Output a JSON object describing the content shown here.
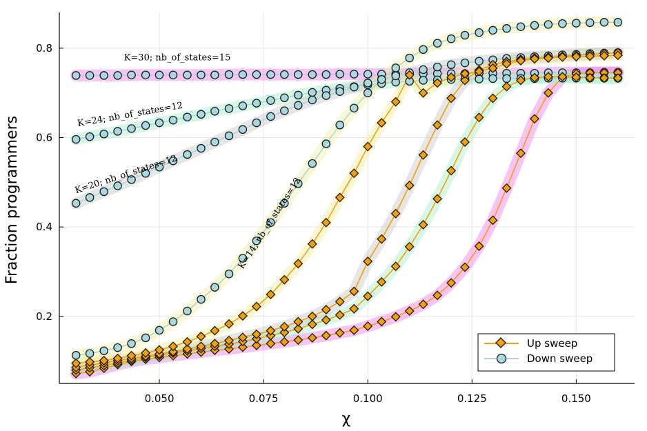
{
  "chart_data": {
    "type": "line",
    "title": "",
    "xlabel": "χ",
    "ylabel": "Fraction programmers",
    "xlim": [
      0.026,
      0.164
    ],
    "ylim": [
      0.05,
      0.88
    ],
    "xticks": [
      0.05,
      0.075,
      0.1,
      0.125,
      0.15
    ],
    "xtick_labels": [
      "0.050",
      "0.075",
      "0.100",
      "0.125",
      "0.150"
    ],
    "yticks": [
      0.2,
      0.4,
      0.6,
      0.8
    ],
    "ytick_labels": [
      "0.2",
      "0.4",
      "0.6",
      "0.8"
    ],
    "grid": true,
    "legend_position": "bottom-right",
    "legend": [
      {
        "label": "Up sweep",
        "color": "#f5a000",
        "marker": "diamond"
      },
      {
        "label": "Down sweep",
        "color": "#a8d8e0",
        "marker": "circle"
      }
    ],
    "x": [
      0.03,
      0.0333,
      0.0367,
      0.04,
      0.0433,
      0.0467,
      0.05,
      0.0533,
      0.0567,
      0.06,
      0.0633,
      0.0667,
      0.07,
      0.0733,
      0.0767,
      0.08,
      0.0833,
      0.0867,
      0.09,
      0.0933,
      0.0967,
      0.1,
      0.1033,
      0.1067,
      0.11,
      0.1133,
      0.1167,
      0.12,
      0.1233,
      0.1267,
      0.13,
      0.1333,
      0.1367,
      0.14,
      0.1433,
      0.1467,
      0.15,
      0.1533,
      0.1567,
      0.16
    ],
    "series": [
      {
        "annotation": "K=30; nb_of_states=15",
        "band_color": "#f07ae8",
        "up": [
          0.072,
          0.076,
          0.084,
          0.092,
          0.099,
          0.104,
          0.108,
          0.112,
          0.116,
          0.12,
          0.124,
          0.127,
          0.131,
          0.135,
          0.139,
          0.143,
          0.147,
          0.152,
          0.157,
          0.163,
          0.169,
          0.178,
          0.188,
          0.199,
          0.212,
          0.227,
          0.247,
          0.275,
          0.31,
          0.357,
          0.415,
          0.487,
          0.565,
          0.642,
          0.7,
          0.735,
          0.743,
          0.745,
          0.745,
          0.745
        ],
        "down": [
          0.739,
          0.739,
          0.739,
          0.739,
          0.74,
          0.74,
          0.74,
          0.74,
          0.74,
          0.74,
          0.74,
          0.741,
          0.741,
          0.741,
          0.741,
          0.741,
          0.741,
          0.741,
          0.741,
          0.742,
          0.742,
          0.742,
          0.742,
          0.742,
          0.743,
          0.743,
          0.743,
          0.743,
          0.743,
          0.744,
          0.744,
          0.744,
          0.744,
          0.744,
          0.745,
          0.745,
          0.745,
          0.745,
          0.746,
          0.746
        ]
      },
      {
        "annotation": "K=24; nb_of_states=12",
        "band_color": "#a8f0c8",
        "up": [
          0.08,
          0.085,
          0.09,
          0.096,
          0.102,
          0.108,
          0.113,
          0.118,
          0.123,
          0.128,
          0.133,
          0.138,
          0.144,
          0.15,
          0.157,
          0.164,
          0.172,
          0.182,
          0.192,
          0.203,
          0.217,
          0.245,
          0.277,
          0.312,
          0.356,
          0.405,
          0.463,
          0.526,
          0.59,
          0.645,
          0.688,
          0.714,
          0.728,
          0.734,
          0.736,
          0.736,
          0.735,
          0.734,
          0.733,
          0.733
        ],
        "down": [
          0.596,
          0.602,
          0.608,
          0.614,
          0.62,
          0.627,
          0.633,
          0.639,
          0.646,
          0.652,
          0.659,
          0.665,
          0.671,
          0.677,
          0.683,
          0.689,
          0.695,
          0.701,
          0.706,
          0.71,
          0.714,
          0.718,
          0.721,
          0.724,
          0.726,
          0.728,
          0.729,
          0.73,
          0.731,
          0.731,
          0.732,
          0.732,
          0.732,
          0.732,
          0.733,
          0.733,
          0.733,
          0.733,
          0.733,
          0.733
        ]
      },
      {
        "annotation": "K=20; nb_of_states=12",
        "band_color": "#c8c8c8",
        "up": [
          0.086,
          0.091,
          0.096,
          0.101,
          0.106,
          0.111,
          0.116,
          0.121,
          0.127,
          0.133,
          0.139,
          0.146,
          0.153,
          0.16,
          0.168,
          0.177,
          0.188,
          0.2,
          0.215,
          0.233,
          0.256,
          0.323,
          0.373,
          0.43,
          0.493,
          0.561,
          0.628,
          0.688,
          0.728,
          0.751,
          0.763,
          0.77,
          0.775,
          0.778,
          0.78,
          0.782,
          0.784,
          0.786,
          0.788,
          0.79
        ],
        "down": [
          0.453,
          0.466,
          0.479,
          0.492,
          0.506,
          0.52,
          0.534,
          0.548,
          0.562,
          0.576,
          0.59,
          0.604,
          0.618,
          0.633,
          0.647,
          0.66,
          0.672,
          0.684,
          0.694,
          0.703,
          0.713,
          0.722,
          0.73,
          0.738,
          0.745,
          0.752,
          0.758,
          0.763,
          0.767,
          0.771,
          0.774,
          0.777,
          0.779,
          0.781,
          0.783,
          0.785,
          0.786,
          0.788,
          0.789,
          0.79
        ]
      },
      {
        "annotation": "K=14; nb_of_states=12",
        "band_color": "#f5f0a0",
        "up": [
          0.095,
          0.098,
          0.101,
          0.106,
          0.112,
          0.118,
          0.125,
          0.133,
          0.143,
          0.155,
          0.168,
          0.183,
          0.201,
          0.222,
          0.249,
          0.282,
          0.318,
          0.362,
          0.41,
          0.466,
          0.52,
          0.58,
          0.633,
          0.68,
          0.74,
          0.7,
          0.722,
          0.735,
          0.743,
          0.748,
          0.755,
          0.765,
          0.772,
          0.776,
          0.778,
          0.78,
          0.781,
          0.782,
          0.783,
          0.784
        ],
        "down": [
          0.113,
          0.117,
          0.123,
          0.13,
          0.139,
          0.152,
          0.169,
          0.188,
          0.212,
          0.238,
          0.265,
          0.295,
          0.33,
          0.369,
          0.41,
          0.453,
          0.497,
          0.542,
          0.586,
          0.628,
          0.666,
          0.7,
          0.73,
          0.756,
          0.778,
          0.797,
          0.811,
          0.821,
          0.829,
          0.835,
          0.84,
          0.844,
          0.848,
          0.851,
          0.853,
          0.855,
          0.856,
          0.857,
          0.858,
          0.858
        ]
      }
    ]
  },
  "colors": {
    "up_line": "#f5a000",
    "down_line": "#a8d8e0",
    "marker_edge": "#1a1a1a",
    "grid": "#e6e6e6"
  }
}
